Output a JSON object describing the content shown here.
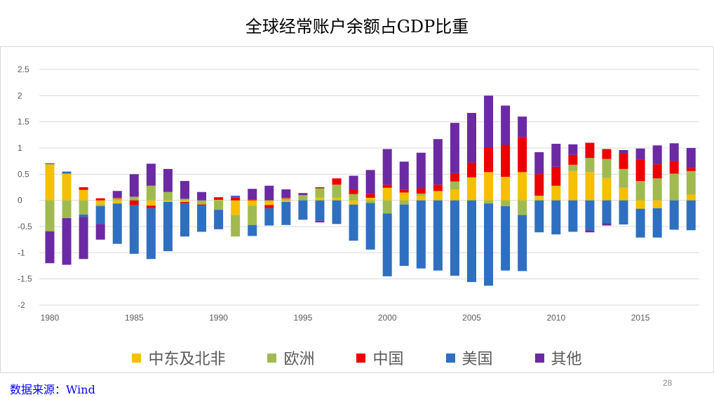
{
  "title": "全球经常账户余额占GDP比重",
  "source": "数据来源：Wind",
  "page_number": "28",
  "chart_data": {
    "type": "bar",
    "stacked": true,
    "title": "全球经常账户余额占GDP比重",
    "xlabel": "",
    "ylabel": "",
    "ylim": [
      -2,
      2.5
    ],
    "yticks": [
      2.5,
      2,
      1.5,
      1,
      0.5,
      0,
      -0.5,
      -1,
      -1.5,
      -2
    ],
    "ytick_labels": [
      "2.5",
      "2",
      "1.5",
      "1",
      "0.5",
      "0",
      "-0.5",
      "-1",
      "-1.5",
      "-2"
    ],
    "xtick_labels": [
      "1980",
      "1985",
      "1990",
      "1995",
      "2000",
      "2005",
      "2010",
      "2015"
    ],
    "grid": true,
    "legend_position": "bottom",
    "categories": [
      1980,
      1981,
      1982,
      1983,
      1984,
      1985,
      1986,
      1987,
      1988,
      1989,
      1990,
      1991,
      1992,
      1993,
      1994,
      1995,
      1996,
      1997,
      1998,
      1999,
      2000,
      2001,
      2002,
      2003,
      2004,
      2005,
      2006,
      2007,
      2008,
      2009,
      2010,
      2011,
      2012,
      2013,
      2014,
      2015,
      2016,
      2017,
      2018
    ],
    "series": [
      {
        "name": "中东及北非",
        "color": "#F5C000",
        "values": [
          0.69,
          0.51,
          0.2,
          -0.08,
          -0.06,
          0,
          -0.1,
          -0.03,
          -0.03,
          0,
          0.01,
          -0.28,
          -0.1,
          -0.09,
          -0.03,
          0,
          0.05,
          0.05,
          -0.08,
          0.05,
          0.24,
          0.15,
          0.09,
          0.16,
          0.21,
          0.44,
          0.54,
          0.45,
          0.54,
          0.08,
          0.27,
          0.56,
          0.54,
          0.43,
          0.24,
          -0.16,
          -0.15,
          0,
          0.11
        ]
      },
      {
        "name": "欧洲",
        "color": "#A1BA50",
        "values": [
          -0.59,
          -0.34,
          -0.27,
          -0.03,
          0.04,
          0.07,
          0.28,
          0.16,
          0.03,
          -0.08,
          -0.18,
          -0.41,
          -0.37,
          0,
          0.04,
          0.1,
          0.18,
          0.25,
          0.12,
          -0.05,
          -0.25,
          -0.08,
          0.04,
          0.02,
          0.15,
          0,
          -0.06,
          -0.11,
          -0.28,
          0.01,
          0.01,
          0.12,
          0.27,
          0.36,
          0.36,
          0.37,
          0.42,
          0.51,
          0.45
        ]
      },
      {
        "name": "中国",
        "color": "#EE0000",
        "values": [
          0,
          0,
          0.05,
          0.04,
          0.02,
          -0.09,
          -0.05,
          0,
          -0.02,
          -0.02,
          0.05,
          0.05,
          0.02,
          -0.06,
          0.02,
          0,
          0.02,
          0.12,
          0.09,
          0.07,
          0.06,
          0.05,
          0.1,
          0.12,
          0.16,
          0.28,
          0.46,
          0.61,
          0.67,
          0.41,
          0.36,
          0.19,
          0.29,
          0.19,
          0.3,
          0.41,
          0.27,
          0.24,
          0.06
        ]
      },
      {
        "name": "美国",
        "color": "#2F6FC0",
        "values": [
          0.02,
          0.04,
          -0.05,
          -0.34,
          -0.77,
          -0.93,
          -0.97,
          -0.94,
          -0.64,
          -0.5,
          -0.36,
          0.03,
          -0.21,
          -0.33,
          -0.44,
          -0.37,
          -0.39,
          -0.44,
          -0.69,
          -0.89,
          -1.2,
          -1.17,
          -1.3,
          -1.34,
          -1.44,
          -1.56,
          -1.57,
          -1.23,
          -1.07,
          -0.61,
          -0.65,
          -0.6,
          -0.57,
          -0.44,
          -0.46,
          -0.55,
          -0.56,
          -0.56,
          -0.57
        ]
      },
      {
        "name": "其他",
        "color": "#6B2AA3",
        "values": [
          -0.61,
          -0.89,
          -0.8,
          -0.3,
          0.12,
          0.43,
          0.42,
          0.44,
          0.34,
          0.16,
          -0.01,
          0.01,
          0.2,
          0.28,
          0.15,
          0.04,
          -0.03,
          -0.01,
          0.26,
          0.46,
          0.68,
          0.54,
          0.68,
          0.87,
          0.96,
          0.95,
          1.0,
          0.75,
          0.39,
          0.42,
          0.44,
          0.2,
          -0.04,
          -0.04,
          0.06,
          0.21,
          0.36,
          0.34,
          0.38
        ]
      }
    ]
  }
}
